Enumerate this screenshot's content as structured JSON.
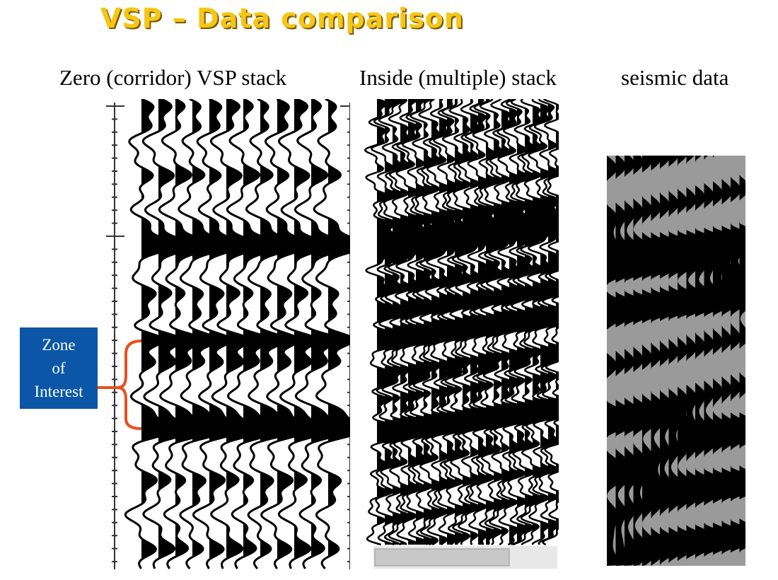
{
  "title": "VSP – Data comparison",
  "panels": {
    "zero": {
      "label": "Zero (corridor) VSP stack"
    },
    "inside": {
      "label": "Inside (multiple) stack"
    },
    "seismic": {
      "label": "seismic data"
    }
  },
  "annotation": {
    "line1": "Zone",
    "line2": "of",
    "line3": "Interest",
    "bracket_color": "#e8501e",
    "box_color": "#0b56a6"
  },
  "colors": {
    "title": "#f5c518",
    "trace_fill": "#000000",
    "seismic_background": "#9a9a9a"
  }
}
